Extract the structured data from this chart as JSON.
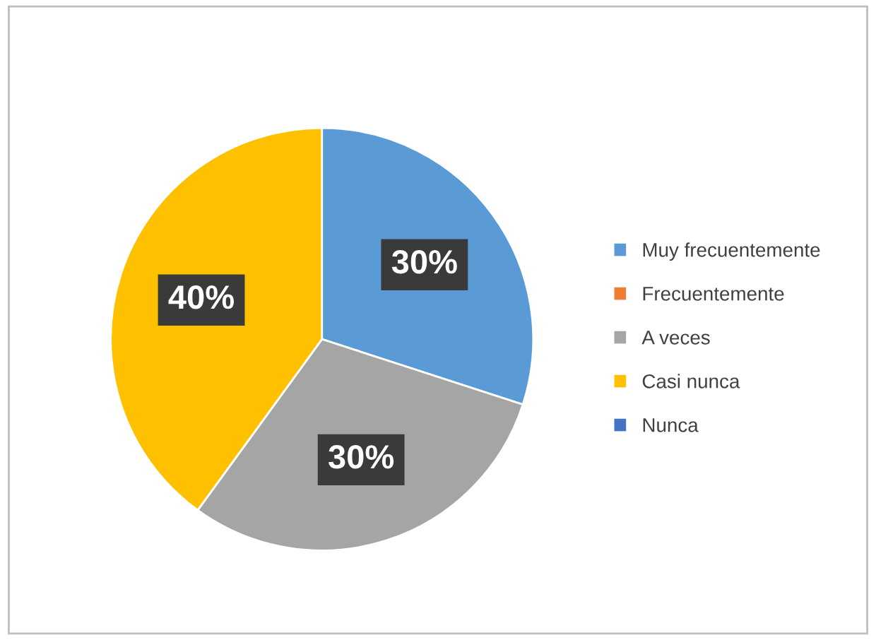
{
  "chart_data": {
    "type": "pie",
    "categories": [
      "Muy frecuentemente",
      "Frecuentemente",
      "A veces",
      "Casi nunca",
      "Nunca"
    ],
    "values": [
      30,
      0,
      30,
      40,
      0
    ],
    "colors": [
      "#5b9bd5",
      "#ed7d31",
      "#a5a5a5",
      "#ffc000",
      "#4472c4"
    ],
    "value_labels": [
      "30%",
      null,
      "30%",
      "40%",
      null
    ],
    "legend": "right"
  }
}
